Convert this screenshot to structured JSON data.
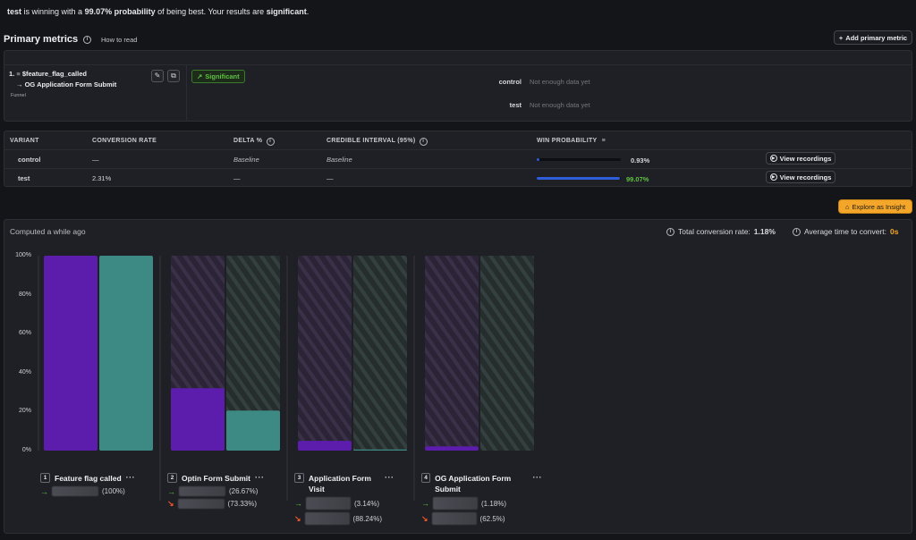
{
  "headline": {
    "winner": "test",
    "text1": " is winning with a ",
    "probability": "99.07% probability",
    "text2": " of being best. Your results are ",
    "significance": "significant",
    "text3": "."
  },
  "primary_metrics": {
    "title": "Primary metrics",
    "how_to_read": "How to read",
    "add_button": "Add primary metric"
  },
  "metric": {
    "index": "1.",
    "step1": "$feature_flag_called",
    "step2": "OG Application Form Submit",
    "type": "Funnel",
    "badge": "Significant",
    "variants": [
      {
        "name": "control",
        "value": "Not enough data yet"
      },
      {
        "name": "test",
        "value": "Not enough data yet"
      }
    ]
  },
  "results_table": {
    "headers": [
      "VARIANT",
      "CONVERSION RATE",
      "DELTA %",
      "CREDIBLE INTERVAL (95%)",
      "WIN PROBABILITY"
    ],
    "rows": [
      {
        "variant": "control",
        "conversion_rate": "—",
        "delta": "Baseline",
        "interval": "Baseline",
        "win_probability": "0.93%",
        "win_value": 0.0093,
        "action": "View recordings"
      },
      {
        "variant": "test",
        "conversion_rate": "2.31%",
        "delta": "—",
        "interval": "—",
        "win_probability": "99.07%",
        "win_value": 0.9907,
        "action": "View recordings"
      }
    ]
  },
  "explore_button": "Explore as Insight",
  "funnel": {
    "computed": "Computed a while ago",
    "total_label": "Total conversion rate:",
    "total_value": "1.18%",
    "avg_label": "Average time to convert:",
    "avg_value": "0s"
  },
  "chart_data": {
    "type": "bar",
    "y_ticks": [
      "100%",
      "80%",
      "60%",
      "40%",
      "20%",
      "0%"
    ],
    "ylim": [
      0,
      100
    ],
    "colors": {
      "control": "#5c1cac",
      "test": "#3d8a85"
    },
    "steps": [
      {
        "num": "1",
        "name": "Feature flag called",
        "control": 100,
        "test": 100,
        "converted": "(100%)",
        "dropped": ""
      },
      {
        "num": "2",
        "name": "Optin Form Submit",
        "control": 32,
        "test": 20.5,
        "converted": "(26.67%)",
        "dropped": "(73.33%)"
      },
      {
        "num": "3",
        "name": "Application Form Visit",
        "control": 5,
        "test": 0.6,
        "converted": "(3.14%)",
        "dropped": "(88.24%)"
      },
      {
        "num": "4",
        "name": "OG Application Form Submit",
        "control": 2.2,
        "test": 0,
        "converted": "(1.18%)",
        "dropped": "(62.5%)"
      }
    ]
  }
}
